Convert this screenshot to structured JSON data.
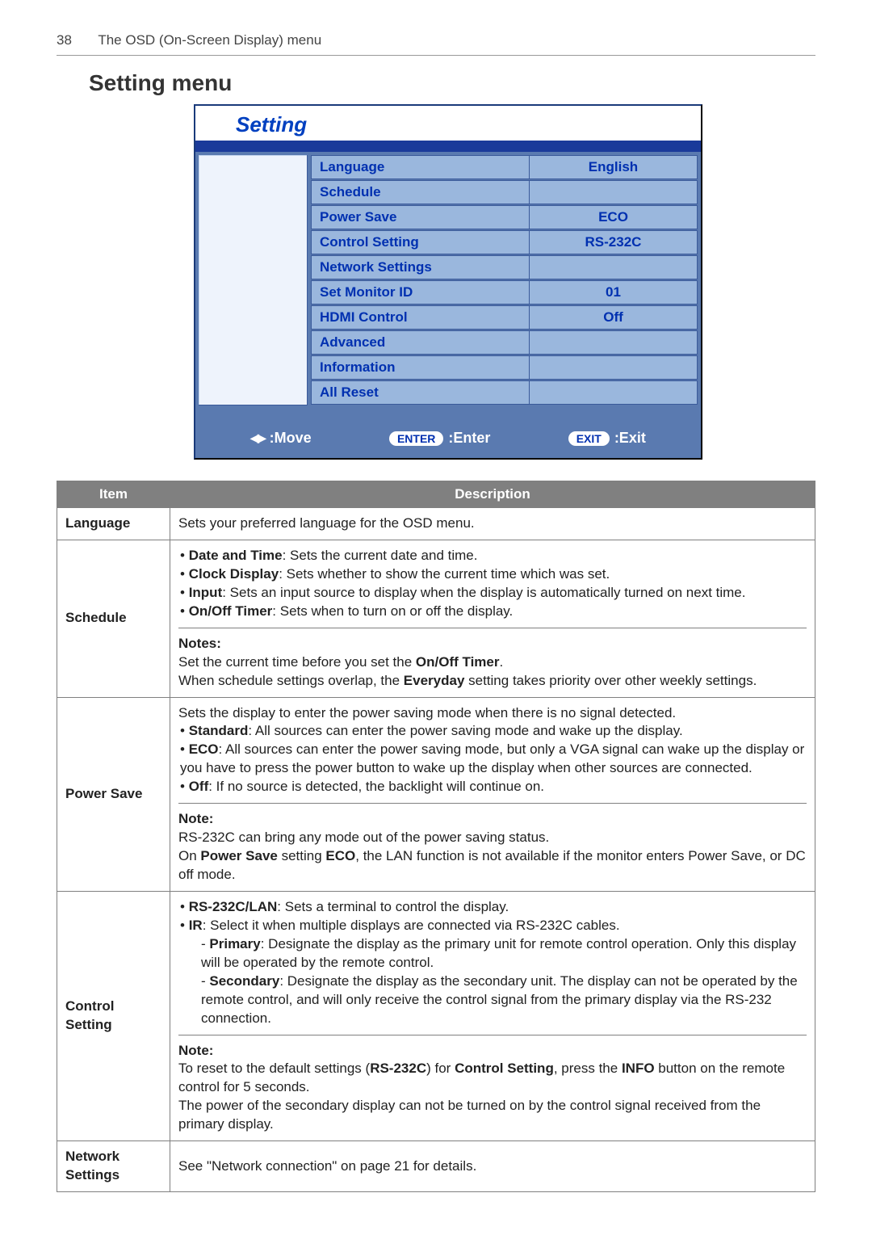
{
  "page": {
    "number": "38",
    "header": "The OSD (On-Screen Display) menu"
  },
  "section_title": "Setting menu",
  "osd": {
    "title": "Setting",
    "rows": [
      {
        "label": "Language",
        "value": "English"
      },
      {
        "label": "Schedule",
        "value": ""
      },
      {
        "label": "Power Save",
        "value": "ECO"
      },
      {
        "label": "Control Setting",
        "value": "RS-232C"
      },
      {
        "label": "Network Settings",
        "value": ""
      },
      {
        "label": "Set Monitor ID",
        "value": "01"
      },
      {
        "label": "HDMI Control",
        "value": "Off"
      },
      {
        "label": "Advanced",
        "value": ""
      },
      {
        "label": "Information",
        "value": ""
      },
      {
        "label": "All Reset",
        "value": ""
      }
    ],
    "footer": {
      "move_label": ":Move",
      "enter_pill": "ENTER",
      "enter_label": ":Enter",
      "exit_pill": "EXIT",
      "exit_label": ":Exit"
    }
  },
  "table": {
    "head_item": "Item",
    "head_desc": "Description",
    "rows": {
      "language": {
        "item": "Language",
        "desc": "Sets your preferred language for the OSD menu."
      },
      "schedule": {
        "item": "Schedule",
        "b1_strong": "Date and Time",
        "b1_rest": ": Sets the current date and time.",
        "b2_strong": "Clock Display",
        "b2_rest": ": Sets whether to show the current time which was set.",
        "b3_strong": "Input",
        "b3_rest": ": Sets an input source to display when the display is automatically turned on next time.",
        "b4_strong": "On/Off Timer",
        "b4_rest": ": Sets when to turn on or off the display.",
        "notes_label": "Notes:",
        "note1a": "Set the current time before you set the ",
        "note1b": "On/Off Timer",
        "note1c": ".",
        "note2a": "When schedule settings overlap, the ",
        "note2b": "Everyday",
        "note2c": " setting takes priority over other weekly settings."
      },
      "powersave": {
        "item": "Power Save",
        "intro": "Sets the display to enter the power saving mode when there is no signal detected.",
        "b1_strong": "Standard",
        "b1_rest": ": All sources can enter the power saving mode and wake up the display.",
        "b2_strong": "ECO",
        "b2_rest": ": All sources can enter the power saving mode, but only a VGA signal can wake up the display or you have to press the power button to wake up the display when other sources are connected.",
        "b3_strong": "Off",
        "b3_rest": ": If no source is detected, the backlight will continue on.",
        "notes_label": "Note:",
        "note1": "RS-232C can bring any mode out of the power saving status.",
        "note2a": "On ",
        "note2b": "Power Save",
        "note2c": " setting ",
        "note2d": "ECO",
        "note2e": ", the LAN function is not available if the monitor enters Power Save, or DC off mode."
      },
      "control": {
        "item": "Control Setting",
        "b1_strong": "RS-232C/LAN",
        "b1_rest": ": Sets a terminal to control the display.",
        "b2_strong": "IR",
        "b2_rest": ": Select it when multiple displays are connected via RS-232C cables.",
        "s1_strong": "Primary",
        "s1_rest": ": Designate the display as the primary unit for remote control operation. Only this display will be operated by the remote control.",
        "s2_strong": "Secondary",
        "s2_rest": ": Designate the display as the secondary unit. The display can not be operated by the remote control, and will only receive the control signal from the primary display via the RS-232 connection.",
        "notes_label": "Note:",
        "note1a": "To reset to the default settings (",
        "note1b": "RS-232C",
        "note1c": ") for ",
        "note1d": "Control Setting",
        "note1e": ", press the ",
        "note1f": "INFO",
        "note1g": " button on the remote control for 5 seconds.",
        "note2": "The power of the secondary display can not be turned on by the control signal received from the primary display."
      },
      "network": {
        "item": "Network Settings",
        "desc": "See \"Network connection\" on page 21 for details."
      }
    }
  },
  "colors": {
    "osd_blue_text": "#0030b0",
    "osd_row_bg": "#9ab7dd",
    "osd_panel_bg": "#5a7ab0",
    "osd_bar": "#1a3a9a",
    "table_header_bg": "#808080"
  }
}
